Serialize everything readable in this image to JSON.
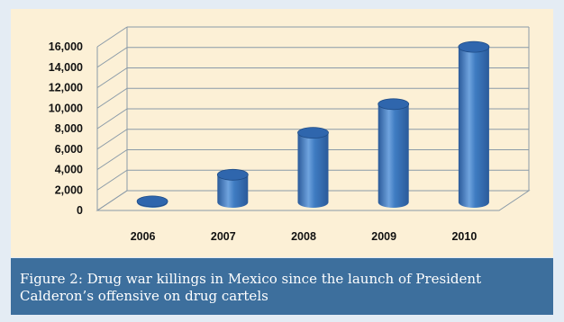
{
  "caption": "Figure 2: Drug war killings in Mexico since the launch of President Calderon’s offensive on drug cartels",
  "colors": {
    "background": "#fcf0d6",
    "bar": "#3f7cc2",
    "bar_dark": "#2a5a9a",
    "bar_top": "#2f66ad",
    "caption_bg": "#3d6f9d",
    "grid": "#8a9aa8"
  },
  "chart_data": {
    "type": "bar",
    "style": "3d-cylinder",
    "categories": [
      "2006",
      "2007",
      "2008",
      "2009",
      "2010"
    ],
    "values": [
      100,
      2700,
      6800,
      9600,
      15200
    ],
    "yticks": [
      "0",
      "2,000",
      "4,000",
      "6,000",
      "8,000",
      "10,000",
      "12,000",
      "14,000",
      "16,000"
    ],
    "ylim": [
      0,
      16000
    ],
    "grid": true,
    "title": "",
    "xlabel": "",
    "ylabel": ""
  }
}
